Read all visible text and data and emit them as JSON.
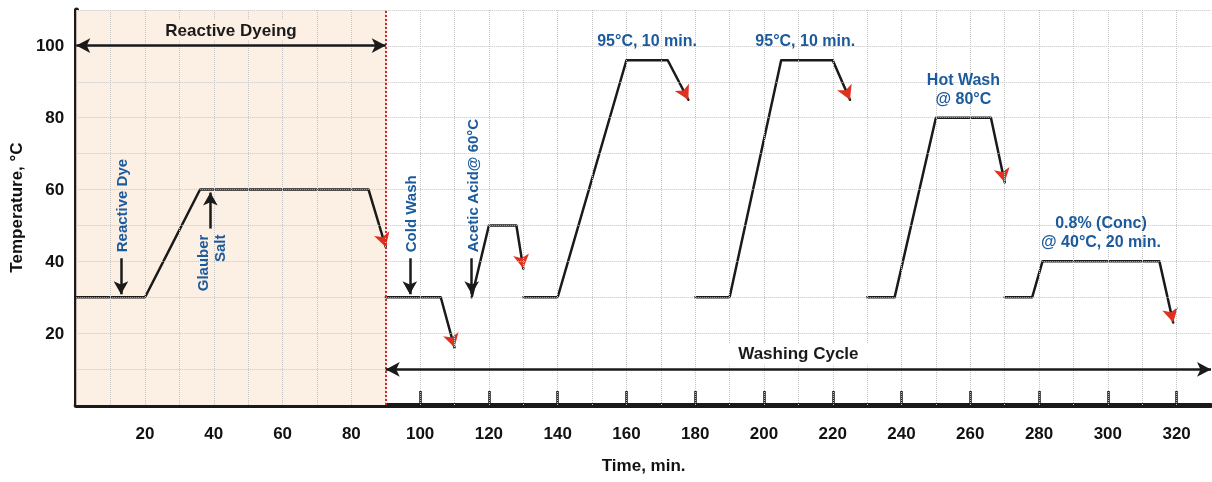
{
  "chart_data": {
    "type": "line",
    "xlabel": "Time, min.",
    "ylabel": "Temperature, °C",
    "xlim": [
      0,
      330
    ],
    "ylim": [
      0,
      110
    ],
    "xticks": [
      {
        "value": 10,
        "label": null
      },
      20,
      {
        "value": 30,
        "label": null
      },
      40,
      {
        "value": 50,
        "label": null
      },
      60,
      {
        "value": 70,
        "label": null
      },
      80,
      {
        "value": 90,
        "label": null
      },
      100,
      {
        "value": 110,
        "label": null
      },
      120,
      {
        "value": 130,
        "label": null
      },
      140,
      {
        "value": 150,
        "label": null
      },
      160,
      {
        "value": 170,
        "label": null
      },
      180,
      {
        "value": 190,
        "label": null
      },
      200,
      {
        "value": 210,
        "label": null
      },
      220,
      {
        "value": 230,
        "label": null
      },
      240,
      {
        "value": 250,
        "label": null
      },
      260,
      {
        "value": 270,
        "label": null
      },
      280,
      {
        "value": 290,
        "label": null
      },
      300,
      {
        "value": 310,
        "label": null
      },
      320
    ],
    "yticks": [
      {
        "value": 10,
        "label": null
      },
      20,
      {
        "value": 30,
        "label": null
      },
      40,
      {
        "value": 50,
        "label": null
      },
      60,
      {
        "value": 70,
        "label": null
      },
      80,
      {
        "value": 90,
        "label": null
      },
      100,
      {
        "value": 110,
        "label": null
      }
    ],
    "grid": true,
    "marker": "none",
    "line_style": "solid",
    "series": [
      {
        "color": "#1a1a1a",
        "x": [
          0,
          20,
          36,
          85,
          90
        ],
        "values": [
          30,
          30,
          60,
          60,
          44
        ]
      },
      {
        "color": "#1a1a1a",
        "x": [
          90,
          106,
          110
        ],
        "values": [
          30,
          30,
          16
        ]
      },
      {
        "color": "#1a1a1a",
        "x": [
          115,
          120,
          128,
          130
        ],
        "values": [
          30,
          50,
          50,
          38
        ]
      },
      {
        "color": "#1a1a1a",
        "x": [
          130,
          140,
          160,
          172,
          178
        ],
        "values": [
          30,
          30,
          96,
          96,
          85
        ]
      },
      {
        "color": "#1a1a1a",
        "x": [
          180,
          190,
          205,
          220,
          225
        ],
        "values": [
          30,
          30,
          96,
          96,
          85
        ]
      },
      {
        "color": "#1a1a1a",
        "x": [
          230,
          238,
          250,
          266,
          270
        ],
        "values": [
          30,
          30,
          80,
          80,
          62
        ]
      },
      {
        "color": "#1a1a1a",
        "x": [
          270,
          278,
          281,
          315,
          319
        ],
        "values": [
          30,
          30,
          40,
          40,
          23
        ]
      }
    ],
    "ref_lines": [
      {
        "axis": "x",
        "value": 90,
        "label": null,
        "color": "#e02020",
        "line_style": "dotted"
      }
    ],
    "bands": [
      {
        "axis": "x",
        "from": 0,
        "to": 90,
        "label": "Reactive Dyeing",
        "color": "#fcefe4"
      }
    ],
    "annotations": [
      {
        "text": "Reactive Dye",
        "x": 13,
        "y": 30
      },
      {
        "text": "Glauber\nSalt",
        "x": 39,
        "y": 60
      },
      {
        "text": "Cold Wash",
        "x": 97,
        "y": 30
      },
      {
        "text": "Acetic Acid@ 60°C",
        "x": 115,
        "y": 30
      },
      {
        "text": "95°C, 10 min.",
        "x": 166,
        "y": 96
      },
      {
        "text": "95°C, 10 min.",
        "x": 212,
        "y": 96
      },
      {
        "text": "Hot Wash\n@ 80°C",
        "x": 258,
        "y": 80
      },
      {
        "text": "0.8% (Conc)\n@ 40°C, 20 min.",
        "x": 298,
        "y": 40
      },
      "Washing Cycle"
    ]
  }
}
